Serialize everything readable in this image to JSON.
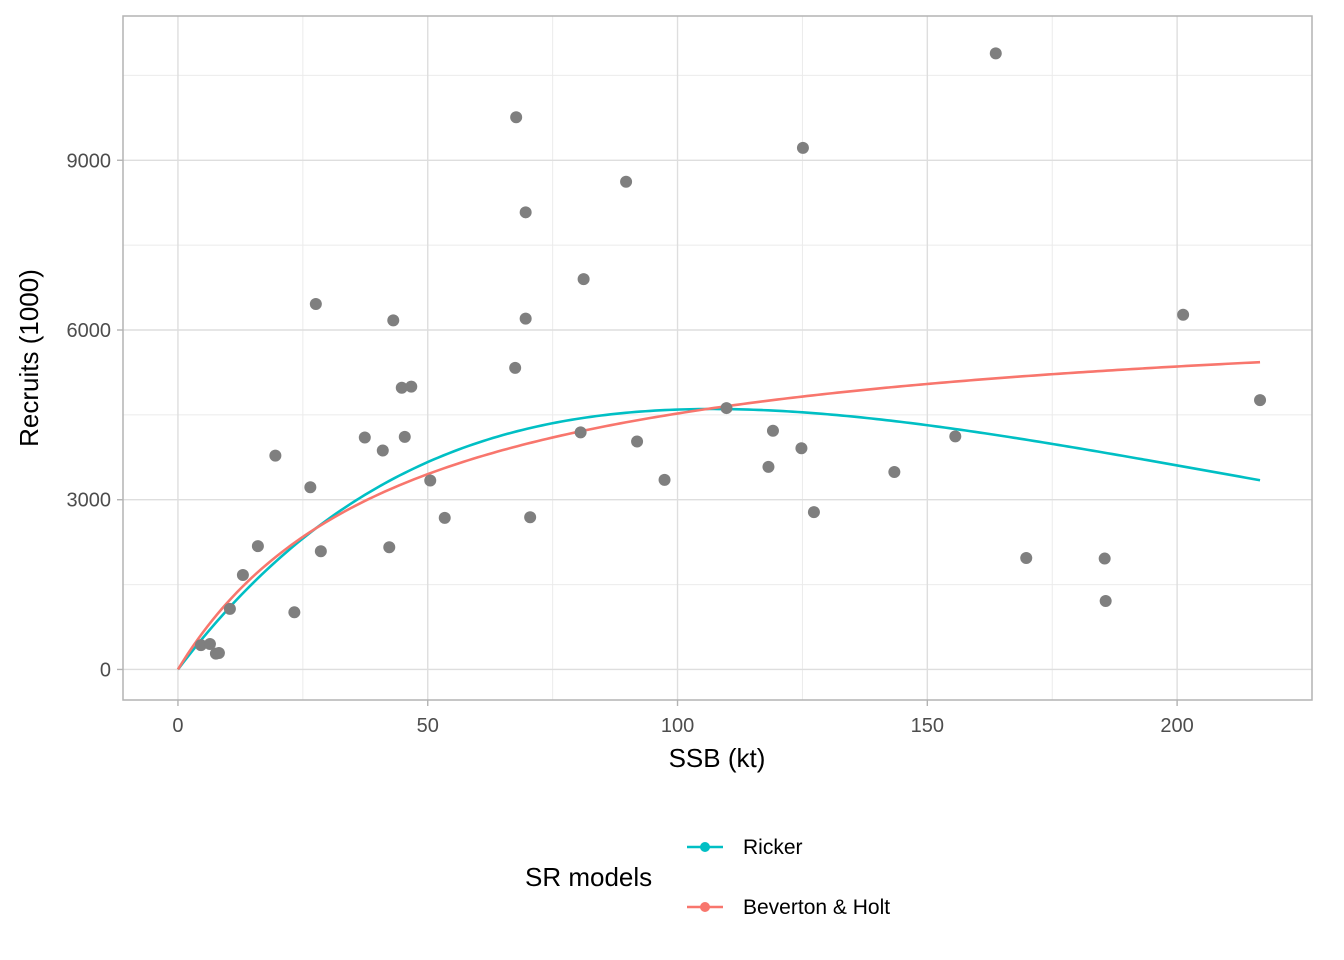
{
  "chart_data": {
    "type": "scatter",
    "title": "",
    "xlabel": "SSB (kt)",
    "ylabel": "Recruits (1000)",
    "xlim": [
      -11,
      227
    ],
    "ylim": [
      -540,
      11550
    ],
    "x_ticks": [
      0,
      50,
      100,
      150,
      200
    ],
    "y_ticks": [
      0,
      3000,
      6000,
      9000
    ],
    "x_tick_labels": [
      "0",
      "50",
      "100",
      "150",
      "200"
    ],
    "y_tick_labels": [
      "0",
      "3000",
      "6000",
      "9000"
    ],
    "x_minor": [
      25,
      75,
      125,
      175
    ],
    "y_minor": [
      1500,
      4500,
      7500,
      10500
    ],
    "grid": true,
    "legend_position": "bottom",
    "legend_title": "SR models",
    "points": {
      "color": "#7f7f7f",
      "x": [
        4.6,
        6.4,
        7.6,
        8.2,
        10.4,
        13,
        16,
        19.5,
        23.3,
        26.5,
        27.6,
        28.6,
        37.4,
        41,
        42.3,
        43.1,
        44.8,
        45.4,
        46.7,
        50.5,
        53.4,
        67.5,
        67.7,
        69.6,
        69.6,
        70.5,
        80.6,
        81.2,
        89.7,
        91.9,
        97.4,
        109.8,
        118.2,
        119.1,
        124.8,
        125.1,
        127.3,
        143.4,
        155.6,
        163.7,
        169.8,
        185.5,
        185.7,
        201.2,
        216.6
      ],
      "y": [
        430,
        450,
        280,
        290,
        1070,
        1670,
        2180,
        3780,
        1010,
        3220,
        6460,
        2090,
        4100,
        3870,
        2160,
        6170,
        4980,
        4110,
        5000,
        3340,
        2680,
        5330,
        9760,
        8080,
        6200,
        2690,
        4190,
        6900,
        8620,
        4030,
        3350,
        4620,
        3580,
        4220,
        3910,
        9220,
        2780,
        3490,
        4120,
        10890,
        1970,
        1960,
        1210,
        6270,
        4760
      ]
    },
    "series": [
      {
        "name": "Ricker",
        "color": "#00bfc4",
        "model": "ricker",
        "alpha": 117,
        "beta": 0.00935,
        "x_max": 216.6
      },
      {
        "name": "Beverton & Holt",
        "color": "#f8766d",
        "model": "beverton-holt",
        "a": 6560,
        "b": 45,
        "x_max": 216.6
      }
    ]
  }
}
